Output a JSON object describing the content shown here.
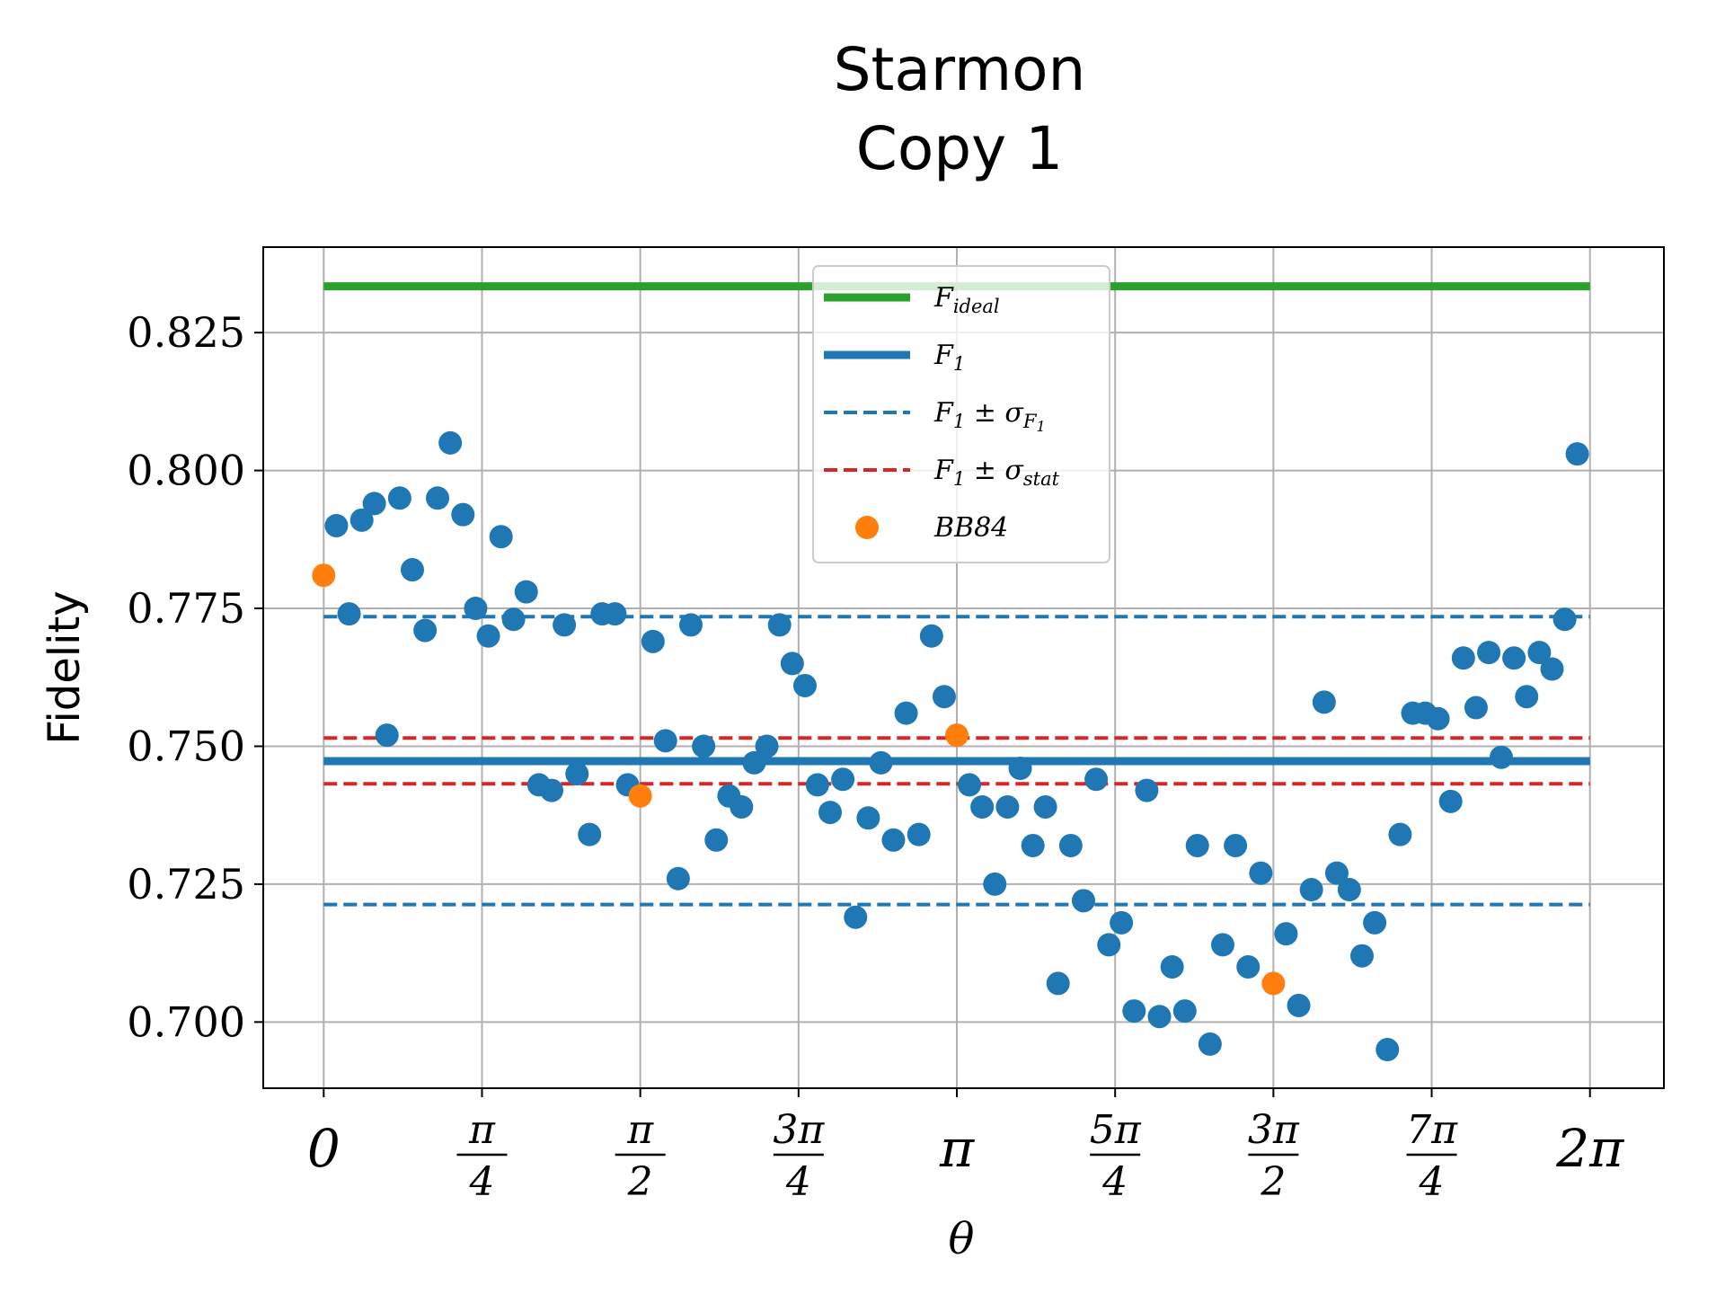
{
  "chart_data": {
    "type": "scatter",
    "title_lines": [
      "Starmon",
      "Copy 1"
    ],
    "xlabel": "θ",
    "ylabel": "Fidelity",
    "xlim": [
      -0.3,
      6.65
    ],
    "ylim": [
      0.688,
      0.8405
    ],
    "grid": true,
    "legend_position": "top-center",
    "x_ticks": [
      {
        "value": 0,
        "text": "0"
      },
      {
        "value": 0.7854,
        "num": "π",
        "den": "4"
      },
      {
        "value": 1.5708,
        "num": "π",
        "den": "2"
      },
      {
        "value": 2.3562,
        "num": "3π",
        "den": "4"
      },
      {
        "value": 3.1416,
        "text": "π"
      },
      {
        "value": 3.927,
        "num": "5π",
        "den": "4"
      },
      {
        "value": 4.7124,
        "num": "3π",
        "den": "2"
      },
      {
        "value": 5.4978,
        "num": "7π",
        "den": "4"
      },
      {
        "value": 6.2832,
        "text": "2π"
      }
    ],
    "y_ticks": [
      {
        "value": 0.7,
        "text": "0.700"
      },
      {
        "value": 0.725,
        "text": "0.725"
      },
      {
        "value": 0.75,
        "text": "0.750"
      },
      {
        "value": 0.775,
        "text": "0.775"
      },
      {
        "value": 0.8,
        "text": "0.800"
      },
      {
        "value": 0.825,
        "text": "0.825"
      }
    ],
    "reference_lines": [
      {
        "name": "F_ideal",
        "legend": {
          "base": "F",
          "sub": "ideal"
        },
        "y": 0.8334,
        "x_range": [
          0,
          6.2832
        ],
        "color": "#2ca02c",
        "style": "solid"
      },
      {
        "name": "F_1",
        "legend": {
          "base": "F",
          "sub": "1"
        },
        "y": 0.7473,
        "x_range": [
          0,
          6.2832
        ],
        "color": "#1f77b4",
        "style": "solid"
      },
      {
        "name": "F_1 ± σ_F1",
        "legend": {
          "base": "F",
          "sub": "1",
          "pm": "σ",
          "pmsub": "F",
          "pmsubsub": "1"
        },
        "y_values": [
          0.7735,
          0.7213
        ],
        "x_range": [
          0,
          6.2832
        ],
        "color": "#1f77b4",
        "style": "dashed"
      },
      {
        "name": "F_1 ± σ_stat",
        "legend": {
          "base": "F",
          "sub": "1",
          "pm": "σ",
          "pmsub": "stat"
        },
        "y_values": [
          0.7515,
          0.7432
        ],
        "x_range": [
          0,
          6.2832
        ],
        "color": "#d62728",
        "style": "dashed"
      }
    ],
    "series": [
      {
        "name": "data",
        "color": "#1f77b4",
        "x": [
          0.063,
          0.126,
          0.189,
          0.251,
          0.314,
          0.377,
          0.44,
          0.503,
          0.565,
          0.628,
          0.691,
          0.754,
          0.817,
          0.88,
          0.942,
          1.005,
          1.068,
          1.131,
          1.194,
          1.257,
          1.319,
          1.382,
          1.445,
          1.508,
          1.634,
          1.696,
          1.759,
          1.822,
          1.885,
          1.948,
          2.011,
          2.073,
          2.136,
          2.199,
          2.262,
          2.325,
          2.388,
          2.45,
          2.513,
          2.576,
          2.639,
          2.702,
          2.765,
          2.827,
          2.89,
          2.953,
          3.016,
          3.079,
          3.204,
          3.267,
          3.33,
          3.393,
          3.456,
          3.519,
          3.581,
          3.644,
          3.707,
          3.77,
          3.833,
          3.896,
          3.958,
          4.021,
          4.084,
          4.147,
          4.21,
          4.273,
          4.335,
          4.398,
          4.461,
          4.524,
          4.587,
          4.65,
          4.775,
          4.838,
          4.901,
          4.964,
          5.027,
          5.089,
          5.152,
          5.215,
          5.278,
          5.341,
          5.404,
          5.466,
          5.529,
          5.592,
          5.655,
          5.718,
          5.781,
          5.843,
          5.906,
          5.969,
          6.032,
          6.095,
          6.158,
          6.22
        ],
        "y": [
          0.79,
          0.774,
          0.791,
          0.794,
          0.752,
          0.795,
          0.782,
          0.771,
          0.795,
          0.805,
          0.792,
          0.775,
          0.77,
          0.788,
          0.773,
          0.778,
          0.743,
          0.742,
          0.772,
          0.745,
          0.734,
          0.774,
          0.774,
          0.743,
          0.769,
          0.751,
          0.726,
          0.772,
          0.75,
          0.733,
          0.741,
          0.739,
          0.747,
          0.75,
          0.772,
          0.765,
          0.761,
          0.743,
          0.738,
          0.744,
          0.719,
          0.737,
          0.747,
          0.733,
          0.756,
          0.734,
          0.77,
          0.759,
          0.743,
          0.739,
          0.725,
          0.739,
          0.746,
          0.732,
          0.739,
          0.707,
          0.732,
          0.722,
          0.744,
          0.714,
          0.718,
          0.702,
          0.742,
          0.701,
          0.71,
          0.702,
          0.732,
          0.696,
          0.714,
          0.732,
          0.71,
          0.727,
          0.716,
          0.703,
          0.724,
          0.758,
          0.727,
          0.724,
          0.712,
          0.718,
          0.695,
          0.734,
          0.756,
          0.756,
          0.755,
          0.74,
          0.766,
          0.757,
          0.767,
          0.748,
          0.766,
          0.759,
          0.767,
          0.764,
          0.773,
          0.803
        ]
      },
      {
        "name": "BB84",
        "legend": "BB84",
        "color": "#ff7f0e",
        "x": [
          0,
          1.5708,
          3.1416,
          4.7124
        ],
        "y": [
          0.781,
          0.741,
          0.752,
          0.707
        ]
      }
    ]
  }
}
